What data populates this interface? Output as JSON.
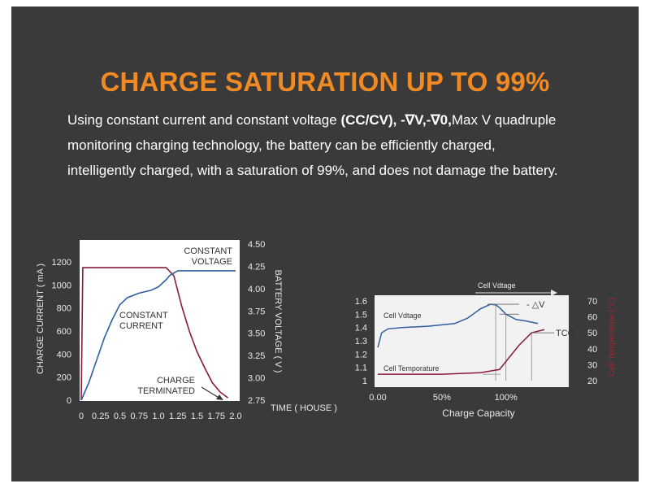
{
  "headline": "CHARGE SATURATION UP TO 99%",
  "description": {
    "part1": "Using constant current and constant voltage ",
    "bold1": "(CC/CV), -∇V,-∇0,",
    "part2": "Max V quadruple",
    "line2": "monitoring charging technology, the battery can be efficiently charged,",
    "line3": "intelligently charged, with a saturation of 99%, and does not damage the battery."
  },
  "colors": {
    "headline": "#f08a24",
    "background": "#3a3a3a",
    "current_line": "#2f5fa0",
    "voltage_line": "#8a1a3a",
    "panel_left": "#ffffff",
    "panel_right": "#f2f2f2"
  },
  "chart_data": [
    {
      "type": "line",
      "title": "",
      "xlabel": "TIME ( HOUSE )",
      "ylabel": "CHARGE CURRENT ( mA )",
      "y2label": "BATTERY VOLTAGE ( V )",
      "xlim": [
        0,
        2.0
      ],
      "ylim": [
        0,
        1200
      ],
      "y2lim": [
        2.75,
        4.5
      ],
      "x_ticks": [
        "0",
        "0.25",
        "0.5",
        "0.75",
        "1.0",
        "1.25",
        "1.5",
        "1.75",
        "2.0"
      ],
      "y_ticks": [
        "0",
        "200",
        "400",
        "600",
        "800",
        "1000",
        "1200"
      ],
      "y2_ticks": [
        "2.75",
        "3.00",
        "3.25",
        "3.50",
        "3.75",
        "4.00",
        "4.25",
        "4.50"
      ],
      "annotations": [
        {
          "text_lines": [
            "CONSTANT",
            "VOLTAGE"
          ]
        },
        {
          "text_lines": [
            "CONSTANT",
            "CURRENT"
          ]
        },
        {
          "text_lines": [
            "CHARGE",
            "TERMINATED"
          ]
        }
      ],
      "series": [
        {
          "color": "#8a1a3a",
          "axis": "left",
          "x": [
            0,
            0.02,
            1.1,
            1.2,
            1.3,
            1.4,
            1.5,
            1.6,
            1.7,
            1.8,
            1.9
          ],
          "values": [
            0,
            1150,
            1150,
            1080,
            820,
            600,
            420,
            280,
            150,
            70,
            20
          ]
        },
        {
          "color": "#2f5fa0",
          "axis": "right",
          "x": [
            0,
            0.1,
            0.2,
            0.3,
            0.4,
            0.5,
            0.6,
            0.75,
            0.9,
            1.0,
            1.1,
            1.15,
            1.25,
            1.5,
            2.0
          ],
          "values": [
            2.75,
            2.95,
            3.2,
            3.45,
            3.65,
            3.82,
            3.9,
            3.95,
            3.98,
            4.02,
            4.1,
            4.15,
            4.2,
            4.2,
            4.2
          ]
        }
      ]
    },
    {
      "type": "line",
      "title": "",
      "xlabel": "Charge Capacity",
      "ylabel": "",
      "y2label": "Cell Temperature (°C)",
      "xlim": [
        0,
        130
      ],
      "ylim": [
        1.0,
        1.6
      ],
      "y2lim": [
        20,
        70
      ],
      "x_ticks": [
        "0.00",
        "50%",
        "100%"
      ],
      "x_tick_values": [
        0,
        50,
        100
      ],
      "y_ticks": [
        "1",
        "1.1",
        "1.2",
        "1.3",
        "1.4",
        "1.5",
        "1.6"
      ],
      "y2_ticks": [
        "20",
        "30",
        "40",
        "50",
        "60",
        "70"
      ],
      "annotations": [
        {
          "text": "Cell Vdtage",
          "position": "top"
        },
        {
          "text": "- △V",
          "position": "top-right"
        },
        {
          "text": "TCO",
          "position": "right"
        }
      ],
      "series": [
        {
          "name": "Cell Vdtage",
          "color": "#2f5fa0",
          "axis": "left",
          "x": [
            0,
            3,
            8,
            20,
            40,
            60,
            70,
            80,
            88,
            92,
            95,
            100,
            108,
            115,
            125
          ],
          "values": [
            1.25,
            1.36,
            1.39,
            1.4,
            1.41,
            1.43,
            1.47,
            1.54,
            1.575,
            1.57,
            1.55,
            1.5,
            1.46,
            1.45,
            1.43
          ]
        },
        {
          "name": "Cell Temporature",
          "color": "#8a1a3a",
          "axis": "right",
          "x": [
            0,
            50,
            80,
            95,
            100,
            110,
            120,
            130
          ],
          "values": [
            24,
            24,
            25,
            27,
            32,
            42,
            50,
            52
          ]
        }
      ]
    }
  ]
}
